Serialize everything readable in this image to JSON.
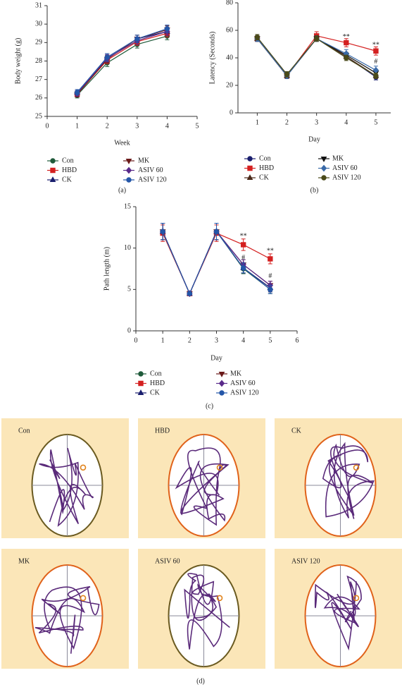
{
  "chart_data": [
    {
      "type": "line",
      "caption": "(a)",
      "x_label": "Week",
      "y_label": "Body weight (g)",
      "xlim": [
        0,
        5
      ],
      "xticks": [
        0,
        1,
        2,
        3,
        4,
        5
      ],
      "ylim": [
        25,
        31
      ],
      "yticks": [
        25,
        26,
        27,
        28,
        29,
        30,
        31
      ],
      "x": [
        1,
        2,
        3,
        4
      ],
      "series": [
        {
          "name": "Con",
          "color": "#1f5a3a",
          "marker": "circle",
          "values": [
            26.15,
            27.9,
            28.9,
            29.35
          ],
          "errors": [
            0.15,
            0.2,
            0.2,
            0.2
          ]
        },
        {
          "name": "HBD",
          "color": "#d42020",
          "marker": "square",
          "values": [
            26.2,
            28.05,
            29.05,
            29.5
          ],
          "errors": [
            0.15,
            0.2,
            0.2,
            0.2
          ]
        },
        {
          "name": "CK",
          "color": "#1a1f6e",
          "marker": "triangle",
          "values": [
            26.3,
            28.2,
            29.2,
            29.6
          ],
          "errors": [
            0.15,
            0.2,
            0.2,
            0.2
          ]
        },
        {
          "name": "MK",
          "color": "#6b1a1a",
          "marker": "triangle-down",
          "values": [
            26.2,
            28.1,
            29.2,
            29.7
          ],
          "errors": [
            0.15,
            0.2,
            0.2,
            0.2
          ]
        },
        {
          "name": "ASIV 60",
          "color": "#5a2a8a",
          "marker": "diamond",
          "values": [
            26.25,
            28.15,
            29.1,
            29.6
          ],
          "errors": [
            0.15,
            0.2,
            0.2,
            0.2
          ]
        },
        {
          "name": "ASIV 120",
          "color": "#2456a8",
          "marker": "circle",
          "values": [
            26.3,
            28.2,
            29.2,
            29.75
          ],
          "errors": [
            0.15,
            0.2,
            0.2,
            0.2
          ]
        }
      ],
      "annotations": []
    },
    {
      "type": "line",
      "caption": "(b)",
      "x_label": "Day",
      "y_label": "Latency (Seconds)",
      "xlim": [
        0.35,
        5.5
      ],
      "xticks": [
        1,
        2,
        3,
        4,
        5
      ],
      "ylim": [
        0,
        80
      ],
      "yticks": [
        0,
        20,
        40,
        60,
        80
      ],
      "x": [
        1,
        2,
        3,
        4,
        5
      ],
      "series": [
        {
          "name": "Con",
          "color": "#1a1f6e",
          "marker": "circle",
          "values": [
            54,
            27,
            54,
            41,
            26
          ],
          "errors": [
            2,
            2,
            2,
            2,
            2
          ]
        },
        {
          "name": "HBD",
          "color": "#d42020",
          "marker": "square",
          "values": [
            54,
            27,
            56,
            51,
            45
          ],
          "errors": [
            2,
            2,
            3,
            3,
            3
          ]
        },
        {
          "name": "CK",
          "color": "#4a2a1a",
          "marker": "triangle",
          "values": [
            54,
            27,
            54,
            41,
            27
          ],
          "errors": [
            2,
            2,
            2,
            2,
            2
          ]
        },
        {
          "name": "MK",
          "color": "#111111",
          "marker": "triangle-down",
          "values": [
            54,
            27,
            54,
            42,
            29
          ],
          "errors": [
            2,
            2,
            2,
            2,
            2
          ]
        },
        {
          "name": "ASIV 60",
          "color": "#3a6aa8",
          "marker": "diamond",
          "values": [
            54,
            27,
            54,
            43,
            31
          ],
          "errors": [
            2,
            2,
            2,
            3,
            3
          ]
        },
        {
          "name": "ASIV 120",
          "color": "#4a4a1a",
          "marker": "circle",
          "values": [
            55,
            28,
            54,
            40,
            27
          ],
          "errors": [
            2,
            2,
            2,
            2,
            2
          ]
        }
      ],
      "annotations": [
        {
          "text": "**",
          "x": 4,
          "y": 55
        },
        {
          "text": "**",
          "x": 5,
          "y": 49
        },
        {
          "text": "#",
          "x": 5,
          "y": 37
        }
      ]
    },
    {
      "type": "line",
      "caption": "(c)",
      "x_label": "Day",
      "y_label": "Path length (m)",
      "xlim": [
        0,
        6
      ],
      "xticks": [
        0,
        1,
        2,
        3,
        4,
        5,
        6
      ],
      "ylim": [
        0,
        15
      ],
      "yticks": [
        0,
        5,
        10,
        15
      ],
      "x": [
        1,
        2,
        3,
        4,
        5
      ],
      "series": [
        {
          "name": "Con",
          "color": "#1f5a3a",
          "marker": "circle",
          "values": [
            12,
            4.5,
            12,
            7.5,
            5
          ],
          "errors": [
            1,
            0.2,
            1,
            0.6,
            0.5
          ]
        },
        {
          "name": "HBD",
          "color": "#d42020",
          "marker": "square",
          "values": [
            11.8,
            4.5,
            11.8,
            10.4,
            8.7
          ],
          "errors": [
            1,
            0.2,
            1,
            0.7,
            0.6
          ]
        },
        {
          "name": "CK",
          "color": "#1a1f6e",
          "marker": "triangle",
          "values": [
            12,
            4.5,
            12,
            7.6,
            5.2
          ],
          "errors": [
            1,
            0.2,
            1,
            0.6,
            0.5
          ]
        },
        {
          "name": "MK",
          "color": "#6b1a1a",
          "marker": "triangle-down",
          "values": [
            12,
            4.5,
            12,
            8,
            5.5
          ],
          "errors": [
            1,
            0.2,
            1,
            0.6,
            0.5
          ]
        },
        {
          "name": "ASIV 60",
          "color": "#5a2a8a",
          "marker": "diamond",
          "values": [
            12,
            4.5,
            12,
            8,
            5.5
          ],
          "errors": [
            1,
            0.2,
            1,
            0.6,
            0.5
          ]
        },
        {
          "name": "ASIV 120",
          "color": "#2456a8",
          "marker": "circle",
          "values": [
            12,
            4.5,
            12,
            7.6,
            5
          ],
          "errors": [
            1,
            0.2,
            1,
            0.6,
            0.5
          ]
        }
      ],
      "annotations": [
        {
          "text": "**",
          "x": 4,
          "y": 11.4
        },
        {
          "text": "#",
          "x": 4,
          "y": 8.8
        },
        {
          "text": "**",
          "x": 5,
          "y": 9.6
        },
        {
          "text": "#",
          "x": 5,
          "y": 6.6
        }
      ]
    }
  ],
  "tracks": {
    "caption": "(d)",
    "panels": [
      "Con",
      "HBD",
      "CK",
      "MK",
      "ASIV 60",
      "ASIV 120"
    ]
  }
}
